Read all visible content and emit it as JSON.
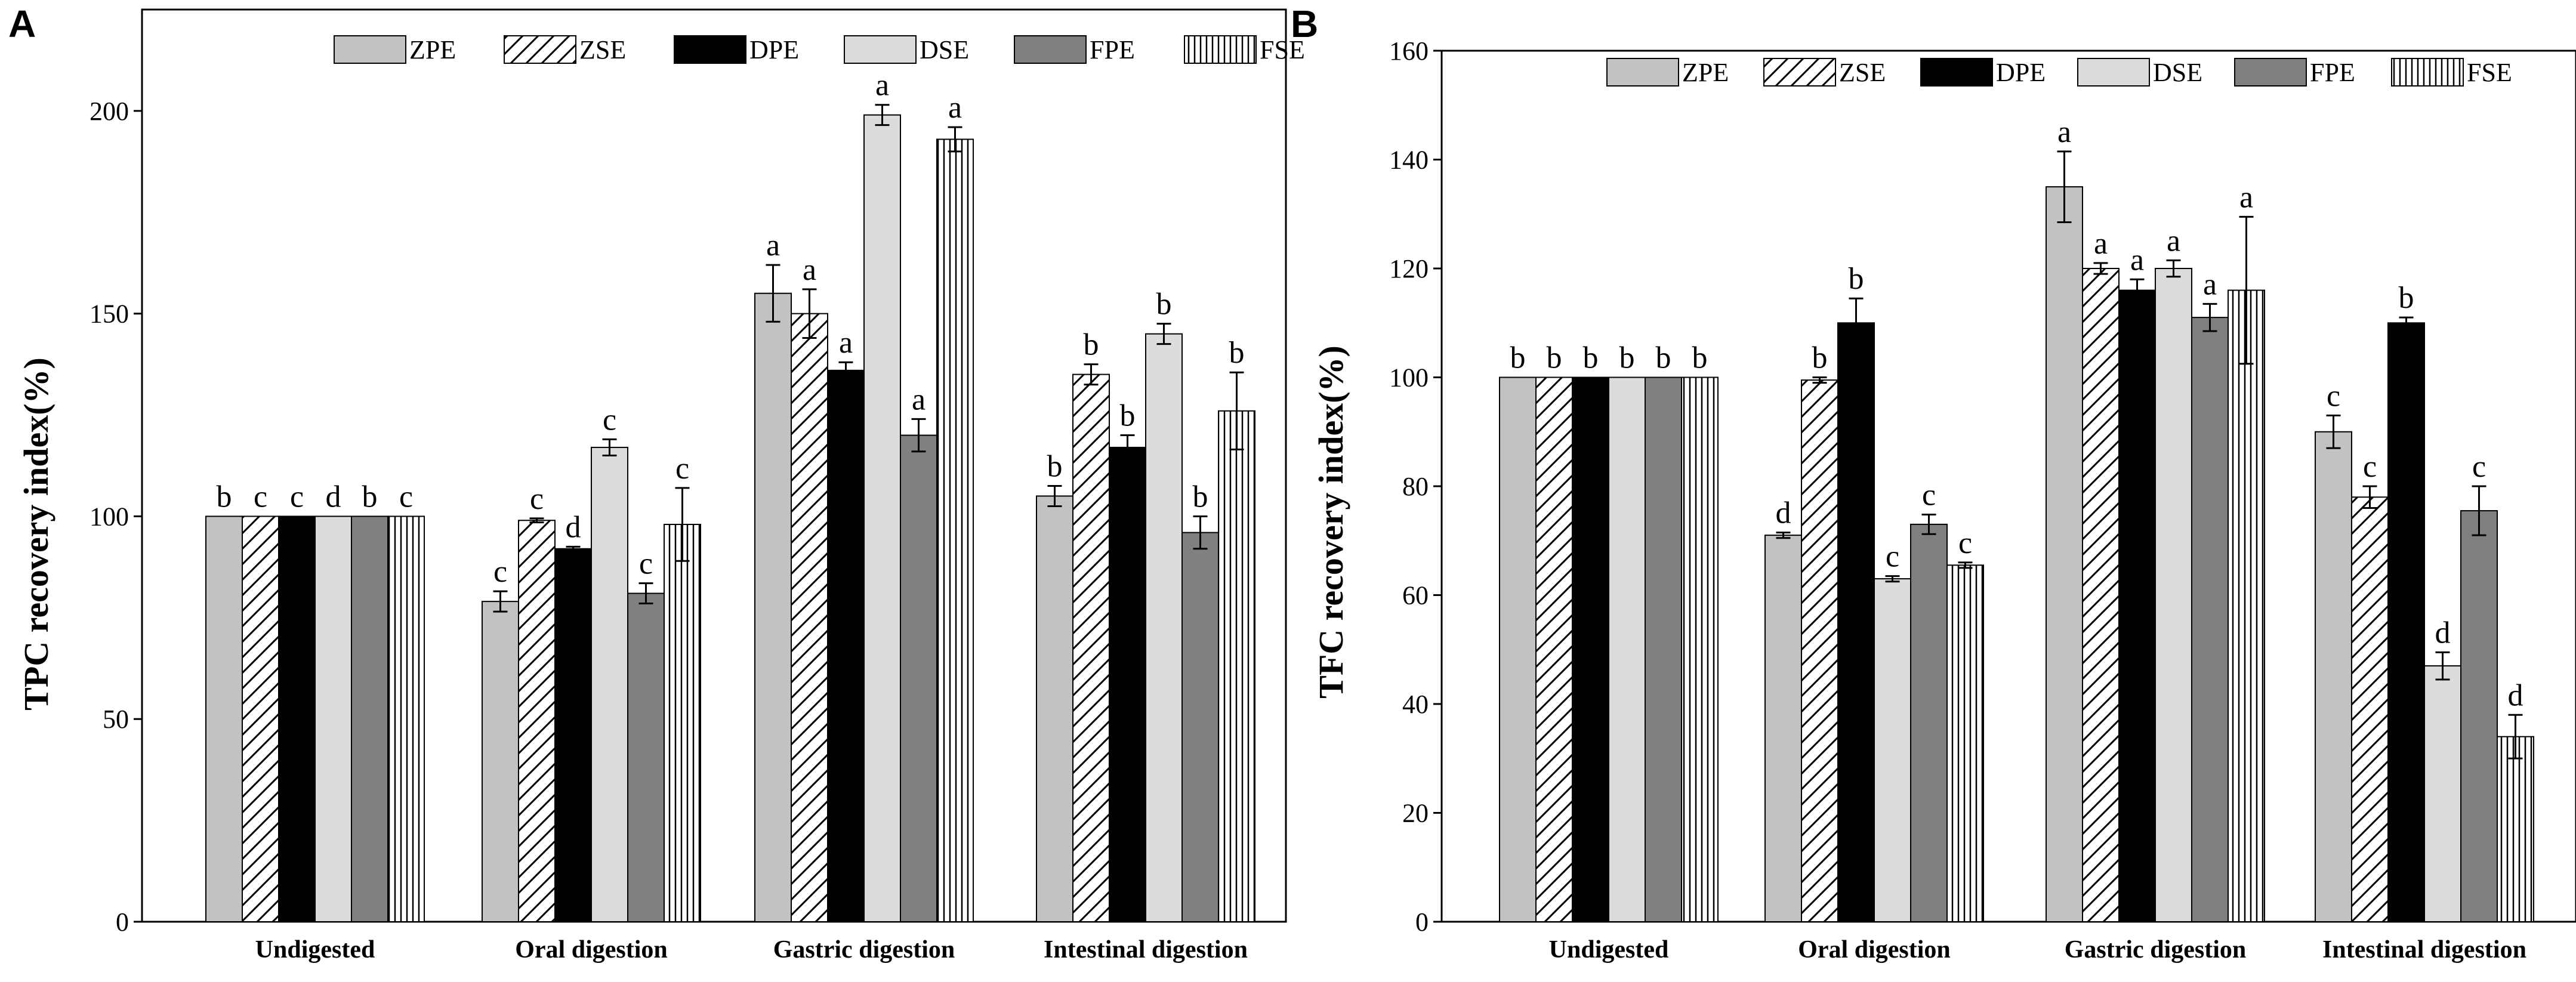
{
  "colors": {
    "ZPE": "#c2c2c2",
    "DPE": "#000000",
    "DSE": "#dcdcdc",
    "FPE": "#808080"
  },
  "chart_data": [
    {
      "panel": "A",
      "type": "bar",
      "ylabel": "TPC  recovery index(%)",
      "xlabel": "",
      "ylim": [
        0,
        225
      ],
      "yticks": [
        0,
        50,
        100,
        150,
        200
      ],
      "categories": [
        "Undigested",
        "Oral digestion",
        "Gastric digestion",
        "Intestinal digestion"
      ],
      "legend_position": "top",
      "series": [
        {
          "name": "ZPE",
          "pattern": "solid-light",
          "values": [
            100,
            79,
            155,
            105
          ],
          "errors": [
            0,
            2.5,
            7,
            2.5
          ],
          "letters": [
            "b",
            "c",
            "a",
            "b"
          ]
        },
        {
          "name": "ZSE",
          "pattern": "hatch",
          "values": [
            100,
            99,
            150,
            135
          ],
          "errors": [
            0,
            0.5,
            6,
            2.5
          ],
          "letters": [
            "c",
            "c",
            "a",
            "b"
          ]
        },
        {
          "name": "DPE",
          "pattern": "solid-black",
          "values": [
            100,
            92,
            136,
            117
          ],
          "errors": [
            0,
            0.5,
            2,
            3
          ],
          "letters": [
            "c",
            "d",
            "a",
            "b"
          ]
        },
        {
          "name": "DSE",
          "pattern": "solid-pale",
          "values": [
            100,
            117,
            199,
            145
          ],
          "errors": [
            0,
            2,
            2.5,
            2.5
          ],
          "letters": [
            "d",
            "c",
            "a",
            "b"
          ]
        },
        {
          "name": "FPE",
          "pattern": "solid-dark",
          "values": [
            100,
            81,
            120,
            96
          ],
          "errors": [
            0,
            2.5,
            4,
            4
          ],
          "letters": [
            "b",
            "c",
            "a",
            "b"
          ]
        },
        {
          "name": "FSE",
          "pattern": "vertical",
          "values": [
            100,
            98,
            193,
            126
          ],
          "errors": [
            0,
            9,
            3,
            9.5
          ],
          "letters": [
            "c",
            "c",
            "a",
            "b"
          ]
        }
      ]
    },
    {
      "panel": "B",
      "type": "bar",
      "ylabel": "TFC recovery index(%)",
      "xlabel": "",
      "ylim": [
        0,
        160
      ],
      "yticks": [
        0,
        20,
        40,
        60,
        80,
        100,
        120,
        140,
        160
      ],
      "categories": [
        "Undigested",
        "Oral digestion",
        "Gastric digestion",
        "Intestinal digestion"
      ],
      "legend_position": "top",
      "series": [
        {
          "name": "ZPE",
          "pattern": "solid-light",
          "values": [
            100,
            71,
            135,
            90
          ],
          "errors": [
            0,
            0.5,
            6.5,
            3
          ],
          "letters": [
            "b",
            "d",
            "a",
            "c"
          ]
        },
        {
          "name": "ZSE",
          "pattern": "hatch",
          "values": [
            100,
            99.5,
            120,
            78
          ],
          "errors": [
            0,
            0.5,
            1,
            2
          ],
          "letters": [
            "b",
            "b",
            "a",
            "c"
          ]
        },
        {
          "name": "DPE",
          "pattern": "solid-black",
          "values": [
            100,
            110,
            116,
            110
          ],
          "errors": [
            0,
            4.5,
            2,
            1
          ],
          "letters": [
            "b",
            "b",
            "a",
            "b"
          ]
        },
        {
          "name": "DSE",
          "pattern": "solid-pale",
          "values": [
            100,
            63,
            120,
            47
          ],
          "errors": [
            0,
            0.5,
            1.5,
            2.5
          ],
          "letters": [
            "b",
            "c",
            "a",
            "d"
          ]
        },
        {
          "name": "FPE",
          "pattern": "solid-dark",
          "values": [
            100,
            73,
            111,
            75.5
          ],
          "errors": [
            0,
            1.8,
            2.5,
            4.5
          ],
          "letters": [
            "b",
            "c",
            "a",
            "c"
          ]
        },
        {
          "name": "FSE",
          "pattern": "vertical",
          "values": [
            100,
            65.5,
            116,
            34
          ],
          "errors": [
            0,
            0.5,
            13.5,
            4
          ],
          "letters": [
            "b",
            "c",
            "a",
            "d"
          ]
        }
      ]
    }
  ]
}
